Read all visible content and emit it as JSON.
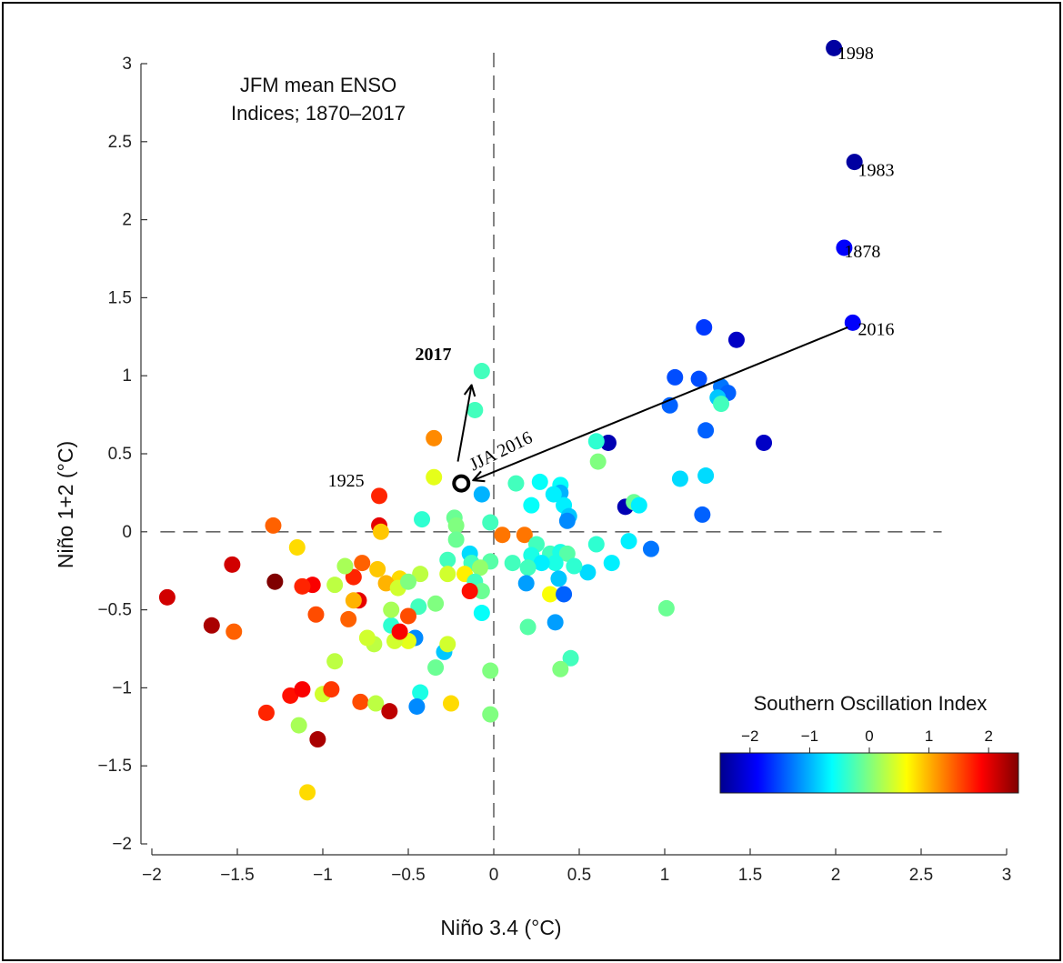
{
  "chart_data": {
    "type": "scatter",
    "title_lines": [
      "JFM mean ENSO",
      "Indices; 1870–2017"
    ],
    "xlabel": "Niño 3.4 (°C)",
    "ylabel": "Niño 1+2 (°C)",
    "xlim": [
      -2,
      3
    ],
    "ylim": [
      -2,
      3
    ],
    "xticks": [
      -2,
      -1.5,
      -1,
      -0.5,
      0,
      0.5,
      1,
      1.5,
      2,
      2.5,
      3
    ],
    "yticks": [
      -2,
      -1.5,
      -1,
      -0.5,
      0,
      0.5,
      1,
      1.5,
      2,
      2.5,
      3
    ],
    "xtick_labels": [
      "−2",
      "−1.5",
      "−1",
      "−0.5",
      "0",
      "0.5",
      "1",
      "1.5",
      "2",
      "2.5",
      "3"
    ],
    "ytick_labels": [
      "−2",
      "−1.5",
      "−1",
      "−0.5",
      "0",
      "0.5",
      "1",
      "1.5",
      "2",
      "2.5",
      "3"
    ],
    "zero_lines": "dashed",
    "colorbar": {
      "title": "Southern Oscillation Index",
      "range": [
        -2.5,
        2.5
      ],
      "ticks": [
        -2,
        -1,
        0,
        1,
        2
      ],
      "tick_labels": [
        "−2",
        "−1",
        "0",
        "1",
        "2"
      ],
      "colormap": "jet",
      "placement": "bottom-right"
    },
    "annotations": [
      {
        "text": "1998",
        "x": 2.01,
        "y": 3.03
      },
      {
        "text": "1983",
        "x": 2.13,
        "y": 2.28
      },
      {
        "text": "1878",
        "x": 2.05,
        "y": 1.76
      },
      {
        "text": "2016",
        "x": 2.13,
        "y": 1.26
      },
      {
        "text": "2017",
        "x": -0.46,
        "y": 1.1,
        "bold": true
      },
      {
        "text": "1925",
        "x": -0.97,
        "y": 0.29
      },
      {
        "text": "JJA 2016",
        "x": -0.12,
        "y": 0.39,
        "rotate": -26
      }
    ],
    "arrows": [
      {
        "from": [
          2.07,
          1.31
        ],
        "to": [
          -0.12,
          0.33
        ]
      },
      {
        "from": [
          -0.21,
          0.45
        ],
        "to": [
          -0.13,
          0.94
        ]
      }
    ],
    "open_marker": {
      "x": -0.19,
      "y": 0.31
    },
    "points": [
      {
        "x": 1.99,
        "y": 3.1,
        "soi": -2.4
      },
      {
        "x": 2.11,
        "y": 2.37,
        "soi": -2.4
      },
      {
        "x": 2.05,
        "y": 1.82,
        "soi": -1.9
      },
      {
        "x": 2.1,
        "y": 1.34,
        "soi": -1.9
      },
      {
        "x": 1.23,
        "y": 1.31,
        "soi": -1.6
      },
      {
        "x": 1.42,
        "y": 1.23,
        "soi": -2.2
      },
      {
        "x": 1.06,
        "y": 0.99,
        "soi": -1.5
      },
      {
        "x": 1.2,
        "y": 0.98,
        "soi": -1.5
      },
      {
        "x": 1.33,
        "y": 0.93,
        "soi": -1.3
      },
      {
        "x": 1.37,
        "y": 0.89,
        "soi": -1.4
      },
      {
        "x": 1.31,
        "y": 0.86,
        "soi": -0.9
      },
      {
        "x": 1.33,
        "y": 0.82,
        "soi": -0.3
      },
      {
        "x": 1.03,
        "y": 0.81,
        "soi": -1.4
      },
      {
        "x": 1.24,
        "y": 0.65,
        "soi": -1.4
      },
      {
        "x": 1.58,
        "y": 0.57,
        "soi": -2.2
      },
      {
        "x": 0.67,
        "y": 0.57,
        "soi": -2.3
      },
      {
        "x": 0.6,
        "y": 0.58,
        "soi": -0.4
      },
      {
        "x": 0.61,
        "y": 0.45,
        "soi": 0.0
      },
      {
        "x": 1.09,
        "y": 0.34,
        "soi": -0.8
      },
      {
        "x": 1.24,
        "y": 0.36,
        "soi": -0.8
      },
      {
        "x": 1.22,
        "y": 0.11,
        "soi": -1.4
      },
      {
        "x": 0.77,
        "y": 0.16,
        "soi": -2.3
      },
      {
        "x": 0.82,
        "y": 0.19,
        "soi": -0.1
      },
      {
        "x": 0.85,
        "y": 0.17,
        "soi": -0.7
      },
      {
        "x": 0.39,
        "y": 0.3,
        "soi": -0.6
      },
      {
        "x": 0.39,
        "y": 0.25,
        "soi": -1.0
      },
      {
        "x": 0.35,
        "y": 0.24,
        "soi": -0.7
      },
      {
        "x": 0.27,
        "y": 0.32,
        "soi": -0.6
      },
      {
        "x": 0.13,
        "y": 0.31,
        "soi": -0.3
      },
      {
        "x": 0.22,
        "y": 0.17,
        "soi": -0.6
      },
      {
        "x": 0.41,
        "y": 0.17,
        "soi": -0.7
      },
      {
        "x": 0.44,
        "y": 0.1,
        "soi": -0.9
      },
      {
        "x": 0.43,
        "y": 0.07,
        "soi": -1.2
      },
      {
        "x": -0.07,
        "y": 1.03,
        "soi": -0.3
      },
      {
        "x": -0.11,
        "y": 0.78,
        "soi": -0.3
      },
      {
        "x": -0.35,
        "y": 0.6,
        "soi": 1.2
      },
      {
        "x": -0.35,
        "y": 0.35,
        "soi": 0.5
      },
      {
        "x": -0.07,
        "y": 0.24,
        "soi": -1.0
      },
      {
        "x": -0.67,
        "y": 0.23,
        "soi": 1.7
      },
      {
        "x": -0.67,
        "y": 0.04,
        "soi": 2.0
      },
      {
        "x": -0.66,
        "y": 0.0,
        "soi": 0.9
      },
      {
        "x": -0.42,
        "y": 0.08,
        "soi": -0.4
      },
      {
        "x": -0.23,
        "y": 0.09,
        "soi": -0.1
      },
      {
        "x": -0.22,
        "y": 0.04,
        "soi": 0.0
      },
      {
        "x": -0.02,
        "y": 0.06,
        "soi": -0.3
      },
      {
        "x": 0.05,
        "y": -0.02,
        "soi": 1.3
      },
      {
        "x": 0.18,
        "y": -0.02,
        "soi": 1.3
      },
      {
        "x": -0.22,
        "y": -0.05,
        "soi": -0.1
      },
      {
        "x": 0.25,
        "y": -0.08,
        "soi": -0.3
      },
      {
        "x": 0.33,
        "y": -0.14,
        "soi": -0.3
      },
      {
        "x": 0.22,
        "y": -0.15,
        "soi": -0.5
      },
      {
        "x": 0.39,
        "y": -0.13,
        "soi": -0.5
      },
      {
        "x": 0.43,
        "y": -0.14,
        "soi": -0.2
      },
      {
        "x": 0.6,
        "y": -0.08,
        "soi": -0.4
      },
      {
        "x": 0.79,
        "y": -0.06,
        "soi": -0.7
      },
      {
        "x": 0.92,
        "y": -0.11,
        "soi": -1.3
      },
      {
        "x": 0.69,
        "y": -0.2,
        "soi": -0.7
      },
      {
        "x": 0.55,
        "y": -0.26,
        "soi": -0.8
      },
      {
        "x": 0.47,
        "y": -0.22,
        "soi": -0.4
      },
      {
        "x": 0.36,
        "y": -0.2,
        "soi": -0.5
      },
      {
        "x": 0.28,
        "y": -0.2,
        "soi": -0.7
      },
      {
        "x": 0.2,
        "y": -0.23,
        "soi": -0.3
      },
      {
        "x": 0.11,
        "y": -0.2,
        "soi": -0.3
      },
      {
        "x": -0.02,
        "y": -0.19,
        "soi": -0.2
      },
      {
        "x": -0.14,
        "y": -0.14,
        "soi": -0.8
      },
      {
        "x": -0.27,
        "y": -0.18,
        "soi": -0.3
      },
      {
        "x": -0.13,
        "y": -0.2,
        "soi": -0.3
      },
      {
        "x": -0.08,
        "y": -0.23,
        "soi": 0.1
      },
      {
        "x": -0.17,
        "y": -0.27,
        "soi": 0.7
      },
      {
        "x": -0.27,
        "y": -0.27,
        "soi": 0.4
      },
      {
        "x": -0.43,
        "y": -0.27,
        "soi": 0.3
      },
      {
        "x": -0.11,
        "y": -0.32,
        "soi": -0.3
      },
      {
        "x": -0.07,
        "y": -0.38,
        "soi": -0.1
      },
      {
        "x": -0.14,
        "y": -0.38,
        "soi": 1.8
      },
      {
        "x": 0.19,
        "y": -0.33,
        "soi": -1.1
      },
      {
        "x": 0.38,
        "y": -0.3,
        "soi": -0.9
      },
      {
        "x": 0.33,
        "y": -0.4,
        "soi": 0.6
      },
      {
        "x": 0.41,
        "y": -0.4,
        "soi": -1.4
      },
      {
        "x": -0.07,
        "y": -0.52,
        "soi": -0.6
      },
      {
        "x": 1.01,
        "y": -0.49,
        "soi": -0.1
      },
      {
        "x": 0.2,
        "y": -0.61,
        "soi": -0.2
      },
      {
        "x": 0.36,
        "y": -0.58,
        "soi": -1.1
      },
      {
        "x": -0.34,
        "y": -0.46,
        "soi": 0.0
      },
      {
        "x": -0.44,
        "y": -0.48,
        "soi": -0.3
      },
      {
        "x": -0.5,
        "y": -0.54,
        "soi": 1.5
      },
      {
        "x": -0.6,
        "y": -0.6,
        "soi": -0.4
      },
      {
        "x": -0.6,
        "y": -0.5,
        "soi": 0.2
      },
      {
        "x": -0.55,
        "y": -0.3,
        "soi": 0.8
      },
      {
        "x": -0.63,
        "y": -0.33,
        "soi": 1.0
      },
      {
        "x": -0.56,
        "y": -0.36,
        "soi": 0.4
      },
      {
        "x": -0.68,
        "y": -0.24,
        "soi": 0.9
      },
      {
        "x": -0.5,
        "y": -0.32,
        "soi": 0.0
      },
      {
        "x": -0.46,
        "y": -0.68,
        "soi": -1.2
      },
      {
        "x": -0.5,
        "y": -0.7,
        "soi": 0.5
      },
      {
        "x": -0.58,
        "y": -0.7,
        "soi": 0.4
      },
      {
        "x": -0.55,
        "y": -0.64,
        "soi": 1.9
      },
      {
        "x": -0.29,
        "y": -0.77,
        "soi": -0.9
      },
      {
        "x": -0.27,
        "y": -0.72,
        "soi": 0.4
      },
      {
        "x": -0.34,
        "y": -0.87,
        "soi": -0.1
      },
      {
        "x": -0.43,
        "y": -1.03,
        "soi": -0.5
      },
      {
        "x": -0.45,
        "y": -1.12,
        "soi": -1.2
      },
      {
        "x": -0.25,
        "y": -1.1,
        "soi": 0.8
      },
      {
        "x": -0.02,
        "y": -0.89,
        "soi": 0.0
      },
      {
        "x": -0.02,
        "y": -1.17,
        "soi": 0.0
      },
      {
        "x": 0.45,
        "y": -0.81,
        "soi": -0.3
      },
      {
        "x": 0.39,
        "y": -0.88,
        "soi": 0.0
      },
      {
        "x": -0.7,
        "y": -0.72,
        "soi": 0.3
      },
      {
        "x": -0.74,
        "y": -0.68,
        "soi": 0.4
      },
      {
        "x": -0.79,
        "y": -0.44,
        "soi": 2.0
      },
      {
        "x": -0.82,
        "y": -0.44,
        "soi": 1.0
      },
      {
        "x": -0.82,
        "y": -0.29,
        "soi": 1.7
      },
      {
        "x": -0.77,
        "y": -0.2,
        "soi": 1.4
      },
      {
        "x": -0.85,
        "y": -0.56,
        "soi": 1.4
      },
      {
        "x": -0.87,
        "y": -0.22,
        "soi": 0.2
      },
      {
        "x": -0.93,
        "y": -0.34,
        "soi": 0.3
      },
      {
        "x": -0.93,
        "y": -0.83,
        "soi": 0.3
      },
      {
        "x": -1.04,
        "y": -0.53,
        "soi": 1.5
      },
      {
        "x": -1.06,
        "y": -0.34,
        "soi": 1.9
      },
      {
        "x": -1.12,
        "y": -0.35,
        "soi": 1.7
      },
      {
        "x": -1.15,
        "y": -0.1,
        "soi": 0.8
      },
      {
        "x": -1.29,
        "y": 0.04,
        "soi": 1.4
      },
      {
        "x": -1.28,
        "y": -0.32,
        "soi": 2.5
      },
      {
        "x": -1.53,
        "y": -0.21,
        "soi": 2.1
      },
      {
        "x": -1.91,
        "y": -0.42,
        "soi": 2.1
      },
      {
        "x": -1.65,
        "y": -0.6,
        "soi": 2.3
      },
      {
        "x": -1.52,
        "y": -0.64,
        "soi": 1.4
      },
      {
        "x": -1.19,
        "y": -1.05,
        "soi": 1.8
      },
      {
        "x": -1.12,
        "y": -1.01,
        "soi": 1.9
      },
      {
        "x": -1.33,
        "y": -1.16,
        "soi": 1.7
      },
      {
        "x": -1.14,
        "y": -1.24,
        "soi": 0.2
      },
      {
        "x": -1.03,
        "y": -1.33,
        "soi": 2.3
      },
      {
        "x": -1.0,
        "y": -1.04,
        "soi": 0.4
      },
      {
        "x": -0.95,
        "y": -1.01,
        "soi": 1.6
      },
      {
        "x": -0.78,
        "y": -1.09,
        "soi": 1.5
      },
      {
        "x": -0.69,
        "y": -1.1,
        "soi": 0.3
      },
      {
        "x": -0.61,
        "y": -1.15,
        "soi": 2.2
      },
      {
        "x": -1.09,
        "y": -1.67,
        "soi": 0.8
      }
    ]
  }
}
